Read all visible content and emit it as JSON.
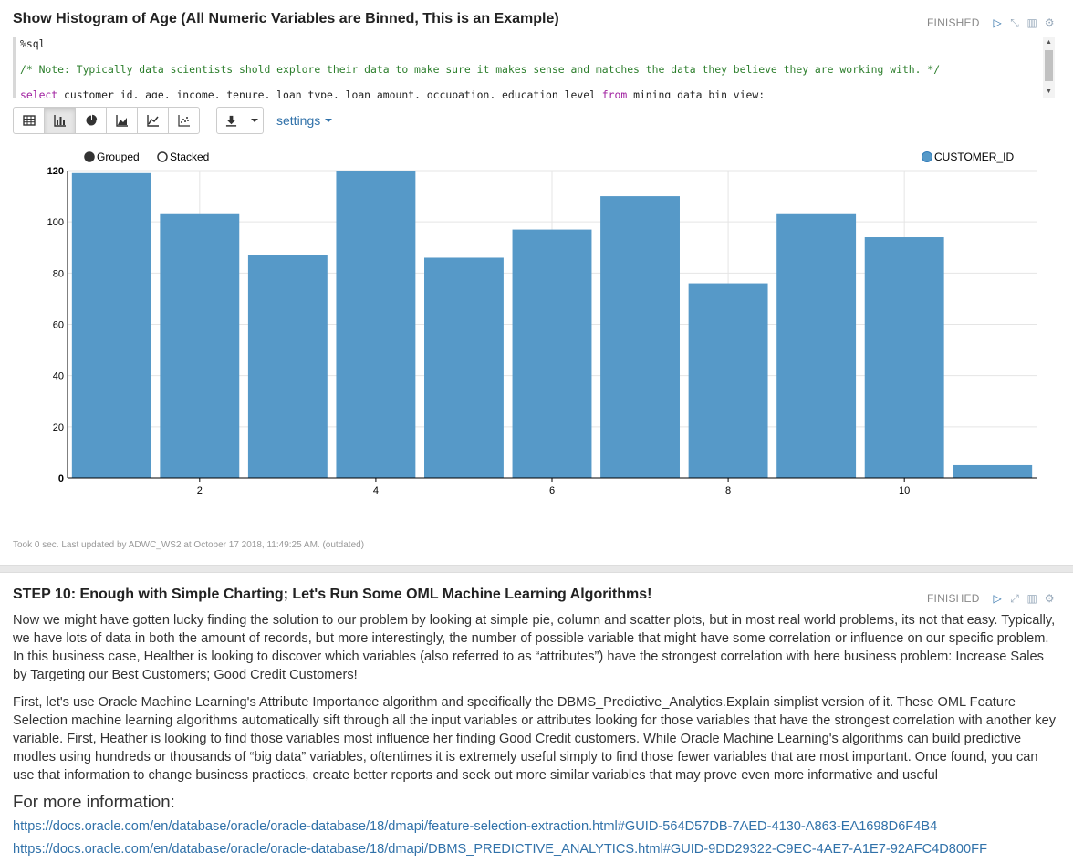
{
  "paragraph1": {
    "title": "Show Histogram of Age (All Numeric Variables are Binned, This is an Example)",
    "status": "FINISHED",
    "code": {
      "line1": "%sql",
      "line2": "/* Note: Typically data scientists shold explore their data to make sure it makes sense and matches the data they believe they are working with. */",
      "line3_kw1": "select",
      "line3_mid": " customer_id, age, income, tenure, loan_type, loan_amount, occupation, education_level ",
      "line3_kw2": "from",
      "line3_end": " mining_data_bin_view;"
    },
    "toolbar": {
      "buttons": [
        "table-icon",
        "bar-chart-icon",
        "pie-chart-icon",
        "area-chart-icon",
        "line-chart-icon",
        "scatter-chart-icon"
      ],
      "active": "bar-chart-icon",
      "settings_label": "settings"
    },
    "took": "Took 0 sec. Last updated by ADWC_WS2 at October 17 2018, 11:49:25 AM. (outdated)"
  },
  "chart_data": {
    "type": "bar",
    "mode_options": [
      "Grouped",
      "Stacked"
    ],
    "selected_mode": "Grouped",
    "categories": [
      1,
      2,
      3,
      4,
      5,
      6,
      7,
      8,
      9,
      10,
      11
    ],
    "x_tick_labels": [
      "2",
      "4",
      "6",
      "8",
      "10"
    ],
    "x_tick_values": [
      2,
      4,
      6,
      8,
      10
    ],
    "series": [
      {
        "name": "CUSTOMER_ID",
        "color": "#5699c8",
        "values": [
          119,
          103,
          87,
          121,
          86,
          97,
          110,
          76,
          103,
          94,
          5
        ]
      }
    ],
    "y_ticks": [
      0,
      20,
      40,
      60,
      80,
      100,
      120
    ],
    "ylim": [
      0,
      120
    ],
    "grid": true,
    "legend_placement": "top-right"
  },
  "paragraph2": {
    "title": "STEP 10: Enough with Simple Charting; Let's Run Some OML Machine Learning Algorithms!",
    "status": "FINISHED",
    "p1": "Now we might have gotten lucky finding the solution to our problem by looking at simple pie, column and scatter plots, but in most real world problems, its not that easy. Typically, we have lots of data in both the amount of records, but more interestingly, the number of possible variable that might have some correlation or influence on our specific problem. In this business case, Healther is looking to discover which variables (also referred to as “attributes”) have the strongest correlation with here business problem: Increase Sales by Targeting our Best Customers; Good Credit Customers!",
    "p2": "First, let's use Oracle Machine Learning's Attribute Importance algorithm and specifically the DBMS_Predictive_Analytics.Explain simplist version of it. These OML Feature Selection machine learning algorithms automatically sift through all the input variables or attributes looking for those variables that have the strongest correlation with another key variable. First, Heather is looking to find those variables most influence her finding Good Credit customers. While Oracle Machine Learning's algorithms can build predictive modles using hundreds or thousands of “big data” variables, oftentimes it is extremely useful simply to find those fewer variables that are most important. Once found, you can use that information to change business practices, create better reports and seek out more similar variables that may prove even more informative and useful",
    "more_info": "For more information:",
    "link1": "https://docs.oracle.com/en/database/oracle/oracle-database/18/dmapi/feature-selection-extraction.html#GUID-564D57DB-7AED-4130-A863-EA1698D6F4B4",
    "link2": "https://docs.oracle.com/en/database/oracle/oracle-database/18/dmapi/DBMS_PREDICTIVE_ANALYTICS.html#GUID-9DD29322-C9EC-4AE7-A1E7-92AFC4D800FF"
  }
}
